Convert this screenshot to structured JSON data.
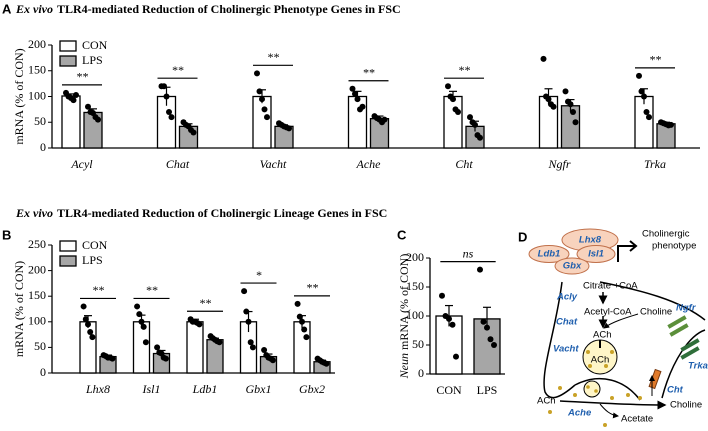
{
  "chart_data": [
    {
      "type": "bar",
      "panel": "A",
      "title_prefix": "Ex vivo",
      "title": "TLR4-mediated  Reduction of Cholinergic Phenotype Genes in FSC",
      "ylabel": "mRNA (% of CON)",
      "categories": [
        "Acyl",
        "Chat",
        "Vacht",
        "Ache",
        "Cht",
        "Ngfr",
        "Trka"
      ],
      "categories_italic": true,
      "series": [
        {
          "name": "CON",
          "color": "#ffffff",
          "values": [
            101,
            100,
            100,
            100,
            100,
            100,
            100
          ],
          "errors": [
            4,
            18,
            13,
            10,
            10,
            15,
            15
          ],
          "points": [
            [
              107,
              100,
              97,
              93,
              103
            ],
            [
              120,
              120,
              100,
              70,
              60
            ],
            [
              145,
              110,
              95,
              75,
              60
            ],
            [
              115,
              105,
              95,
              75,
              80
            ],
            [
              120,
              100,
              95,
              75,
              70
            ],
            [
              173,
              100,
              95,
              85,
              80
            ],
            [
              140,
              110,
              100,
              70,
              60
            ]
          ]
        },
        {
          "name": "LPS",
          "color": "#a6a6a6",
          "values": [
            69,
            42,
            42,
            57,
            42,
            82,
            47
          ],
          "errors": [
            7,
            5,
            3,
            5,
            10,
            12,
            3
          ],
          "points": [
            [
              80,
              70,
              68,
              60,
              55
            ],
            [
              50,
              45,
              42,
              35,
              30
            ],
            [
              48,
              45,
              42,
              40,
              38
            ],
            [
              62,
              58,
              55,
              50,
              55
            ],
            [
              60,
              50,
              45,
              25,
              20
            ],
            [
              110,
              90,
              85,
              70,
              50
            ],
            [
              50,
              48,
              46,
              44,
              45
            ]
          ]
        }
      ],
      "significance": [
        "**",
        "**",
        "**",
        "**",
        "**",
        null,
        "**"
      ],
      "ylim": [
        0,
        200
      ],
      "yticks": [
        0,
        50,
        100,
        150,
        200
      ],
      "legend": "upper left"
    },
    {
      "type": "bar",
      "panel": "B",
      "title_prefix": "Ex vivo",
      "title": "TLR4-mediated  Reduction of Cholinergic Lineage Genes in FSC",
      "ylabel": "mRNA (% of CON)",
      "categories": [
        "Lhx8",
        "Isl1",
        "Ldb1",
        "Gbx1",
        "Gbx2"
      ],
      "categories_italic": true,
      "series": [
        {
          "name": "CON",
          "color": "#ffffff",
          "values": [
            100,
            100,
            100,
            100,
            100
          ],
          "errors": [
            12,
            13,
            5,
            20,
            12
          ],
          "points": [
            [
              130,
              105,
              95,
              80,
              70
            ],
            [
              130,
              115,
              100,
              90,
              60
            ],
            [
              105,
              100,
              100,
              98,
              95
            ],
            [
              160,
              120,
              100,
              60,
              50
            ],
            [
              135,
              110,
              100,
              85,
              70
            ]
          ]
        },
        {
          "name": "LPS",
          "color": "#a6a6a6",
          "values": [
            32,
            38,
            65,
            32,
            22
          ],
          "errors": [
            3,
            6,
            3,
            5,
            3
          ],
          "points": [
            [
              35,
              33,
              30,
              30,
              28
            ],
            [
              50,
              40,
              38,
              30,
              28
            ],
            [
              72,
              68,
              65,
              62,
              60
            ],
            [
              45,
              35,
              30,
              28,
              25
            ],
            [
              28,
              25,
              22,
              20,
              18
            ]
          ]
        }
      ],
      "significance": [
        "**",
        "**",
        "**",
        "*",
        "**"
      ],
      "ylim": [
        0,
        250
      ],
      "yticks": [
        0,
        50,
        100,
        150,
        200,
        250
      ],
      "legend": "upper left"
    },
    {
      "type": "bar",
      "panel": "C",
      "ylabel_prefix": "Neun",
      "ylabel": "mRNA (% of CON)",
      "categories": [
        "CON",
        "LPS"
      ],
      "categories_italic": false,
      "values": [
        100,
        95
      ],
      "errors": [
        18,
        20
      ],
      "colors": [
        "#ffffff",
        "#a6a6a6"
      ],
      "points": [
        [
          135,
          100,
          95,
          85,
          30
        ],
        [
          180,
          90,
          80,
          60,
          50
        ]
      ],
      "significance": "ns",
      "ylim": [
        0,
        200
      ],
      "yticks": [
        0,
        50,
        100,
        150,
        200
      ]
    }
  ],
  "diagram": {
    "panel": "D",
    "lhx8": "Lhx8",
    "ldb1": "Ldb1",
    "isl1": "Isl1",
    "gbx": "Gbx",
    "phenotype": [
      "Cholinergic",
      "phenotype"
    ],
    "citrate": "Citrate +CoA",
    "acly": "Acly",
    "acetyl_coa": "Acetyl-CoA",
    "choline_in": "Choline",
    "chat": "Chat",
    "ach_cyto": "ACh",
    "vacht": "Vacht",
    "ach_vesicle": "ACh",
    "ngfr": "Ngfr",
    "trka": "Trka",
    "cht": "Cht",
    "ach_out": "ACh",
    "choline_out": "Choline",
    "ache": "Ache",
    "acetate": "Acetate"
  }
}
